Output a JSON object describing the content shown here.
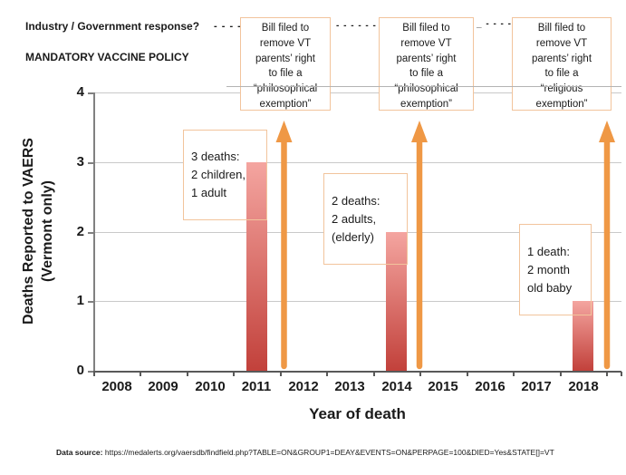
{
  "header": {
    "response_label": "Industry / Government response?",
    "policy_label": "MANDATORY VACCINE POLICY",
    "connector_dashes": [
      "- - - -",
      "- - - - - - -",
      "_ - - - - -"
    ]
  },
  "callouts": [
    {
      "text": "Bill filed to\nremove VT\nparents’ right\nto file a\n“philosophical\nexemption”"
    },
    {
      "text": "Bill filed to\nremove VT\nparents’ right\nto file a\n“philosophical\nexemption”"
    },
    {
      "text": "Bill filed to\nremove VT\nparents’ right\nto file a\n“religious\nexemption”"
    }
  ],
  "chart_data": {
    "type": "bar",
    "title": "",
    "xlabel": "Year of death",
    "ylabel": "Deaths Reported to VAERS\n(Vermont only)",
    "categories": [
      "2008",
      "2009",
      "2010",
      "2011",
      "2012",
      "2013",
      "2014",
      "2015",
      "2016",
      "2017",
      "2018"
    ],
    "values": [
      0,
      0,
      0,
      3,
      0,
      0,
      2,
      0,
      0,
      0,
      1
    ],
    "ylim": [
      0,
      4
    ],
    "yticks": [
      "0",
      "1",
      "2",
      "3",
      "4"
    ],
    "grid": true,
    "legend": "none",
    "bar_gradient_top": "#f4a5a0",
    "bar_gradient_bottom": "#c2413b",
    "arrow_color": "#ef9845",
    "note_border_color": "#f2c49c",
    "annotations": [
      {
        "year": "2011",
        "text": "3 deaths:\n2 children,\n1 adult"
      },
      {
        "year": "2014",
        "text": "2 deaths:\n2 adults,\n(elderly)"
      },
      {
        "year": "2018",
        "text": "1 death:\n2 month\nold baby"
      }
    ],
    "arrow_years": [
      "2011",
      "2014",
      "2018"
    ]
  },
  "footer": {
    "label": "Data source:",
    "url": "https://medalerts.org/vaersdb/findfield.php?TABLE=ON&GROUP1=DEAY&EVENTS=ON&PERPAGE=100&DIED=Yes&STATE[]=VT"
  }
}
